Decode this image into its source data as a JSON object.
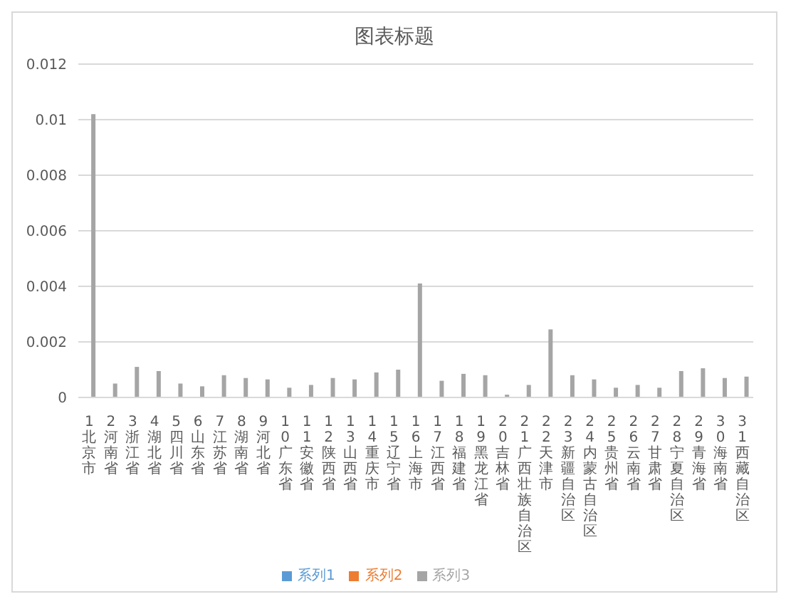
{
  "chart_data": {
    "type": "bar",
    "title": "图表标题",
    "categories": [
      "1北京市",
      "2河南省",
      "3浙江省",
      "4湖北省",
      "5四川省",
      "6山东省",
      "7江苏省",
      "8湖南省",
      "9河北省",
      "10广东省",
      "11安徽省",
      "12陕西省",
      "13山西省",
      "14重庆市",
      "15辽宁省",
      "16上海市",
      "17江西省",
      "18福建省",
      "19黑龙江省",
      "20吉林省",
      "21广西壮族自治区",
      "22天津市",
      "23新疆自治区",
      "24内蒙古自治区",
      "25贵州省",
      "26云南省",
      "27甘肃省",
      "28宁夏自治区",
      "29青海省",
      "30海南省",
      "31西藏自治区"
    ],
    "series": [
      {
        "name": "系列1",
        "color": "#5b9bd5",
        "values": [
          null,
          null,
          null,
          null,
          null,
          null,
          null,
          null,
          null,
          null,
          null,
          null,
          null,
          null,
          null,
          null,
          null,
          null,
          null,
          null,
          null,
          null,
          null,
          null,
          null,
          null,
          null,
          null,
          null,
          null,
          null
        ]
      },
      {
        "name": "系列2",
        "color": "#ed7d31",
        "values": [
          null,
          null,
          null,
          null,
          null,
          null,
          null,
          null,
          null,
          null,
          null,
          null,
          null,
          null,
          null,
          null,
          null,
          null,
          null,
          null,
          null,
          null,
          null,
          null,
          null,
          null,
          null,
          null,
          null,
          null,
          null
        ]
      },
      {
        "name": "系列3",
        "color": "#a5a5a5",
        "values": [
          0.0102,
          0.0005,
          0.0011,
          0.00095,
          0.0005,
          0.0004,
          0.0008,
          0.0007,
          0.00065,
          0.00035,
          0.00045,
          0.0007,
          0.00065,
          0.0009,
          0.001,
          0.0041,
          0.0006,
          0.00085,
          0.0008,
          0.0001,
          0.00045,
          0.00245,
          0.0008,
          0.00065,
          0.00035,
          0.00045,
          0.00035,
          0.00095,
          0.00105,
          0.0007,
          0.00075
        ]
      }
    ],
    "ylim": [
      0,
      0.012
    ],
    "yticks": [
      0,
      0.002,
      0.004,
      0.006,
      0.008,
      0.01,
      0.012
    ],
    "grid": "y",
    "legend": "bottom"
  }
}
